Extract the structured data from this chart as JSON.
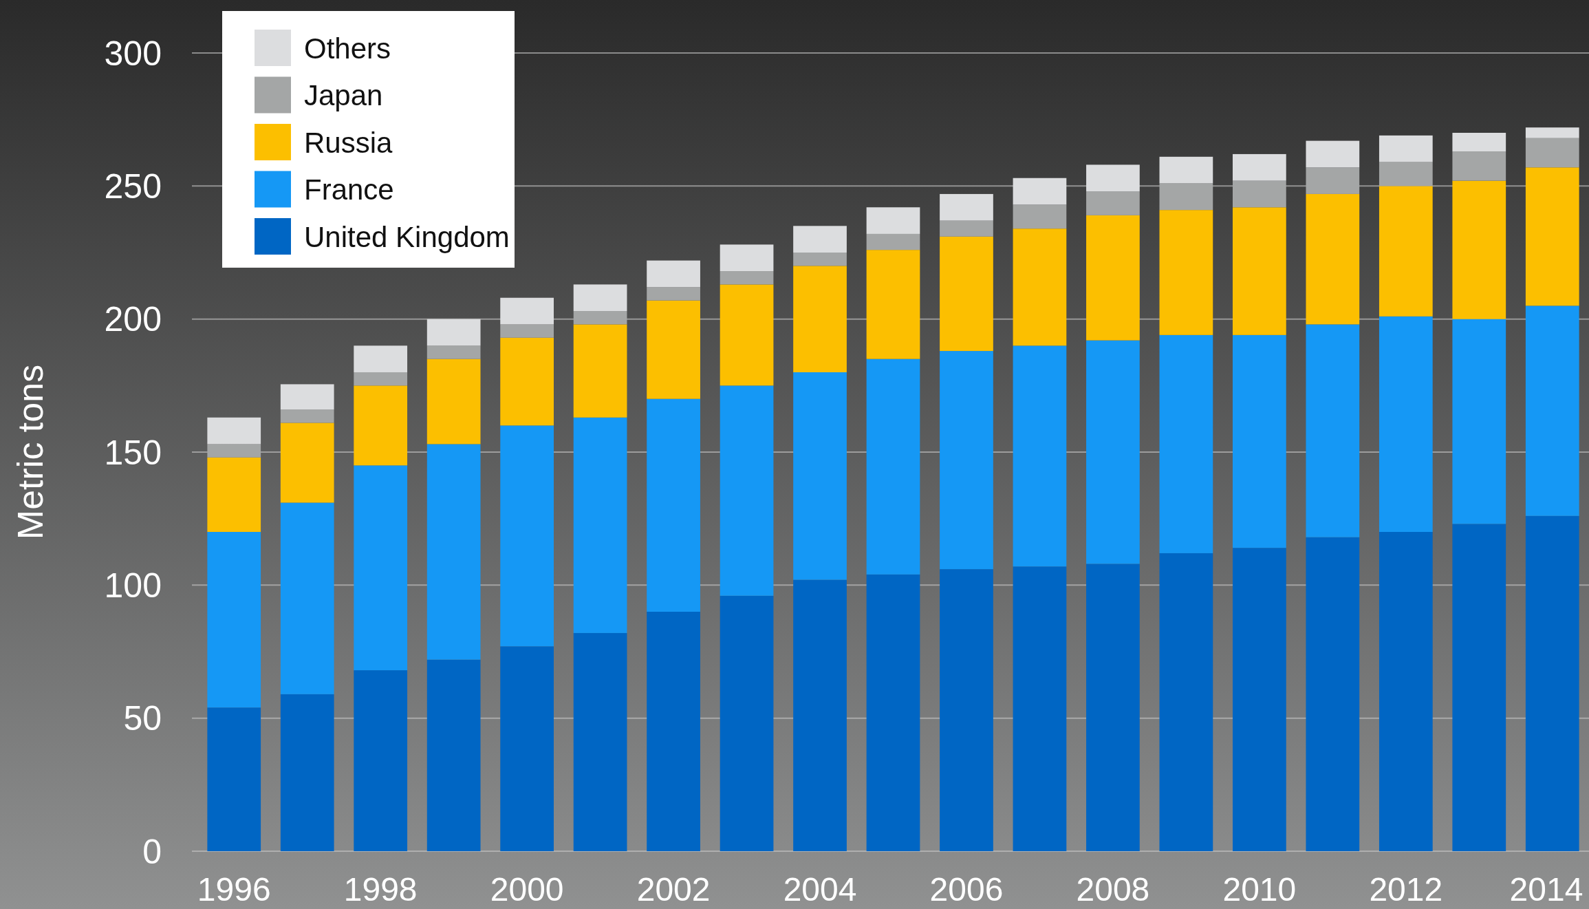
{
  "chart_data": {
    "type": "bar",
    "stacked": true,
    "ylabel": "Metric tons",
    "categories": [
      "1996",
      null,
      "1998",
      null,
      "2000",
      null,
      "2002",
      null,
      "2004",
      null,
      "2006",
      null,
      "2008",
      null,
      "2010",
      null,
      "2012",
      null,
      "2014"
    ],
    "series": [
      {
        "name": "United Kingdom",
        "color": "#0066c4",
        "values": [
          54,
          59,
          68,
          72,
          77,
          82,
          90,
          96,
          102,
          104,
          106,
          107,
          108,
          112,
          114,
          118,
          120,
          123,
          126
        ]
      },
      {
        "name": "France",
        "color": "#1598f5",
        "values": [
          66,
          72,
          77,
          81,
          83,
          81,
          80,
          79,
          78,
          81,
          82,
          83,
          84,
          82,
          80,
          80,
          81,
          77,
          79
        ]
      },
      {
        "name": "Russia",
        "color": "#fcbf00",
        "values": [
          28,
          30,
          30,
          32,
          33,
          35,
          37,
          38,
          40,
          41,
          43,
          44,
          47,
          47,
          48,
          49,
          49,
          52,
          52
        ]
      },
      {
        "name": "Japan",
        "color": "#a4a6a6",
        "values": [
          5,
          5,
          5,
          5,
          5,
          5,
          5,
          5,
          5,
          6,
          6,
          9,
          9,
          10,
          10,
          10,
          9,
          11,
          11
        ]
      },
      {
        "name": "Others",
        "color": "#dcdddf",
        "values": [
          10,
          9.5,
          10,
          10,
          10,
          10,
          10,
          10,
          10,
          10,
          10,
          10,
          10,
          10,
          10,
          10,
          10,
          7,
          4
        ]
      }
    ],
    "ylim": [
      0,
      300
    ],
    "yticks": [
      0,
      50,
      100,
      150,
      200,
      250,
      300
    ],
    "grid": "y",
    "legend": "top left"
  }
}
